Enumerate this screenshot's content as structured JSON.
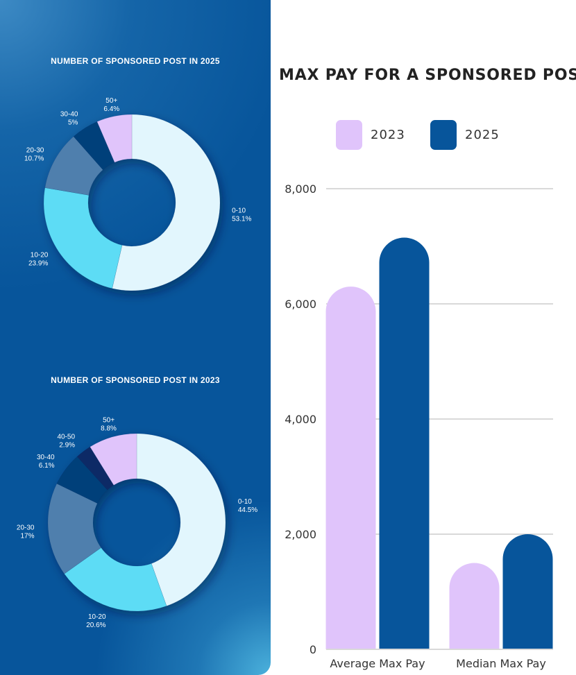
{
  "chart_data": [
    {
      "type": "pie",
      "title": "NUMBER OF SPONSORED POST IN 2025",
      "slices": [
        {
          "label": "0-10",
          "pct_text": "53.1%",
          "value": 53.1,
          "color": "#e2f6fd"
        },
        {
          "label": "10-20",
          "pct_text": "23.9%",
          "value": 23.9,
          "color": "#5ddcf5"
        },
        {
          "label": "20-30",
          "pct_text": "10.7%",
          "value": 10.7,
          "color": "#4f7fad"
        },
        {
          "label": "30-40",
          "pct_text": "5%",
          "value": 5,
          "color": "#063f7a"
        },
        {
          "label": "50+",
          "pct_text": "6.4%",
          "value": 6.4,
          "color": "#e0c4fb"
        }
      ]
    },
    {
      "type": "pie",
      "title": "NUMBER OF SPONSORED POST IN 2023",
      "slices": [
        {
          "label": "0-10",
          "pct_text": "44.5%",
          "value": 44.5,
          "color": "#e2f6fd"
        },
        {
          "label": "10-20",
          "pct_text": "20.6%",
          "value": 20.6,
          "color": "#5ddcf5"
        },
        {
          "label": "20-30",
          "pct_text": "17%",
          "value": 17,
          "color": "#4f7fad"
        },
        {
          "label": "30-40",
          "pct_text": "6.1%",
          "value": 6.1,
          "color": "#063f7a"
        },
        {
          "label": "40-50",
          "pct_text": "2.9%",
          "value": 2.9,
          "color": "#0d2a66"
        },
        {
          "label": "50+",
          "pct_text": "8.8%",
          "value": 8.8,
          "color": "#e0c4fb"
        }
      ]
    },
    {
      "type": "bar",
      "title": "MAX PAY FOR A SPONSORED POST",
      "categories": [
        "Average Max Pay",
        "Median Max Pay"
      ],
      "series": [
        {
          "name": "2023",
          "values": [
            6300,
            1500
          ],
          "color": "#e0c4fb"
        },
        {
          "name": "2025",
          "values": [
            7150,
            2000
          ],
          "color": "#07559b"
        }
      ],
      "ylim": [
        0,
        8000
      ],
      "yticks": [
        0,
        2000,
        4000,
        6000,
        8000
      ],
      "ytick_labels": [
        "0",
        "2,000",
        "4,000",
        "6,000",
        "8,000"
      ],
      "grid": true,
      "legend": "top"
    }
  ]
}
